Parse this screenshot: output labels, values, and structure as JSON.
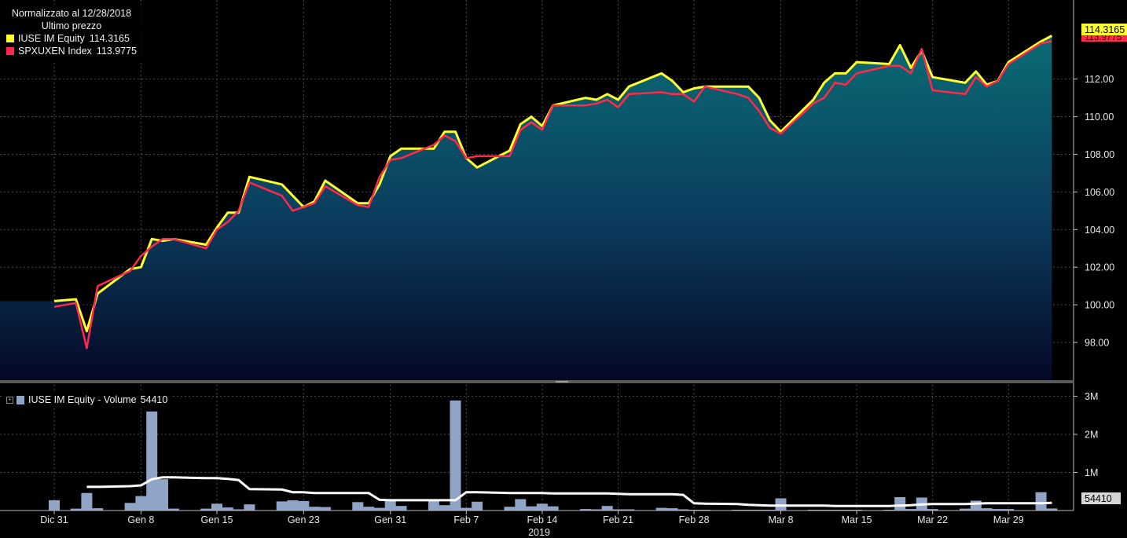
{
  "legend": {
    "header": "Normalizzato al 12/28/2018",
    "subheader": "Ultimo prezzo",
    "series": [
      {
        "label": "IUSE IM Equity",
        "value": "114.3165",
        "color": "#ffff33"
      },
      {
        "label": "SPXUXEN Index",
        "value": "113.9775",
        "color": "#ff2a4a"
      }
    ]
  },
  "volume_legend": {
    "label": "IUSE IM Equity - Volume",
    "value": "54410",
    "color": "#8fa4c7"
  },
  "last_labels": {
    "price": "114.3165",
    "price2": "113.9775",
    "volume": "54410"
  },
  "chart_data": {
    "type": "line",
    "x": [
      "2018-12-31",
      "2019-01-02",
      "2019-01-03",
      "2019-01-04",
      "2019-01-07",
      "2019-01-08",
      "2019-01-09",
      "2019-01-10",
      "2019-01-11",
      "2019-01-14",
      "2019-01-15",
      "2019-01-16",
      "2019-01-17",
      "2019-01-18",
      "2019-01-21",
      "2019-01-22",
      "2019-01-23",
      "2019-01-24",
      "2019-01-25",
      "2019-01-28",
      "2019-01-29",
      "2019-01-30",
      "2019-01-31",
      "2019-02-01",
      "2019-02-04",
      "2019-02-05",
      "2019-02-06",
      "2019-02-07",
      "2019-02-08",
      "2019-02-11",
      "2019-02-12",
      "2019-02-13",
      "2019-02-14",
      "2019-02-15",
      "2019-02-18",
      "2019-02-19",
      "2019-02-20",
      "2019-02-21",
      "2019-02-22",
      "2019-02-25",
      "2019-02-26",
      "2019-02-27",
      "2019-02-28",
      "2019-03-01",
      "2019-03-04",
      "2019-03-05",
      "2019-03-06",
      "2019-03-07",
      "2019-03-08",
      "2019-03-11",
      "2019-03-12",
      "2019-03-13",
      "2019-03-14",
      "2019-03-15",
      "2019-03-18",
      "2019-03-19",
      "2019-03-20",
      "2019-03-21",
      "2019-03-22",
      "2019-03-25",
      "2019-03-26",
      "2019-03-27",
      "2019-03-28",
      "2019-03-29",
      "2019-04-01",
      "2019-04-02"
    ],
    "series": [
      {
        "name": "IUSE IM Equity",
        "color": "#ffff33",
        "values": [
          100.2,
          100.3,
          98.6,
          100.6,
          101.9,
          102.0,
          103.5,
          103.4,
          103.5,
          103.2,
          104.1,
          104.9,
          104.9,
          106.8,
          106.4,
          105.8,
          105.2,
          105.5,
          106.6,
          105.4,
          105.4,
          106.4,
          107.9,
          108.3,
          108.3,
          109.2,
          109.2,
          107.8,
          107.3,
          108.2,
          109.6,
          110.0,
          109.5,
          110.6,
          111.0,
          110.9,
          111.2,
          110.9,
          111.6,
          112.3,
          111.9,
          111.3,
          111.5,
          111.6,
          111.6,
          111.6,
          111.0,
          109.8,
          109.2,
          110.9,
          111.8,
          112.3,
          112.3,
          112.9,
          112.8,
          113.8,
          112.6,
          113.5,
          112.1,
          111.8,
          112.4,
          111.7,
          111.9,
          112.9,
          114.0,
          114.3
        ]
      },
      {
        "name": "SPXUXEN Index",
        "color": "#ff2a4a",
        "values": [
          99.9,
          100.1,
          97.7,
          101.0,
          101.8,
          102.6,
          103.1,
          103.5,
          103.5,
          103.0,
          104.0,
          104.4,
          105.0,
          106.5,
          105.8,
          105.0,
          105.2,
          105.4,
          106.3,
          105.3,
          105.2,
          106.8,
          107.7,
          107.8,
          108.5,
          109.0,
          108.7,
          107.8,
          107.9,
          107.9,
          109.3,
          109.7,
          109.3,
          110.6,
          110.6,
          110.7,
          110.9,
          110.5,
          111.2,
          111.3,
          111.2,
          111.2,
          110.8,
          111.6,
          111.2,
          111.0,
          110.3,
          109.4,
          109.1,
          110.7,
          111.0,
          111.8,
          111.7,
          112.3,
          112.7,
          112.7,
          112.3,
          113.6,
          111.4,
          111.2,
          112.1,
          111.6,
          111.9,
          112.8,
          113.9,
          114.0
        ]
      },
      {
        "name": "IUSE IM Equity - Volume",
        "color": "#8fa4c7",
        "values": [
          270000,
          50000,
          460000,
          60000,
          200000,
          380000,
          2600000,
          820000,
          50000,
          50000,
          180000,
          80000,
          30000,
          160000,
          240000,
          270000,
          250000,
          100000,
          90000,
          220000,
          100000,
          70000,
          300000,
          120000,
          250000,
          140000,
          2890000,
          70000,
          230000,
          100000,
          300000,
          110000,
          180000,
          110000,
          40000,
          30000,
          120000,
          30000,
          30000,
          70000,
          60000,
          30000,
          20000,
          20000,
          20000,
          20000,
          20000,
          20000,
          320000,
          20000,
          20000,
          20000,
          20000,
          20000,
          20000,
          350000,
          40000,
          340000,
          40000,
          50000,
          260000,
          60000,
          40000,
          40000,
          480000,
          54410
        ]
      },
      {
        "name": "Volume average",
        "color": "#ffffff",
        "values": [
          null,
          null,
          620000,
          620000,
          640000,
          660000,
          820000,
          870000,
          870000,
          850000,
          850000,
          830000,
          800000,
          560000,
          550000,
          480000,
          480000,
          460000,
          460000,
          460000,
          460000,
          280000,
          270000,
          270000,
          270000,
          270000,
          270000,
          480000,
          480000,
          460000,
          460000,
          460000,
          460000,
          450000,
          450000,
          450000,
          450000,
          440000,
          430000,
          430000,
          430000,
          410000,
          190000,
          180000,
          170000,
          150000,
          140000,
          130000,
          130000,
          130000,
          130000,
          120000,
          120000,
          120000,
          120000,
          130000,
          140000,
          160000,
          170000,
          170000,
          180000,
          190000,
          190000,
          190000,
          190000,
          200000
        ]
      }
    ],
    "price_axis": {
      "ticks": [
        "98.00",
        "100.00",
        "102.00",
        "104.00",
        "106.00",
        "108.00",
        "110.00",
        "112.00"
      ],
      "ylim": [
        96.0,
        116.2
      ]
    },
    "volume_axis": {
      "ticks": [
        "1M",
        "2M",
        "3M"
      ],
      "ylim": [
        0,
        3300000
      ]
    },
    "date_ticks": [
      {
        "date": "2018-12-31",
        "label": "Dic 31"
      },
      {
        "date": "2019-01-08",
        "label": "Gen 8"
      },
      {
        "date": "2019-01-15",
        "label": "Gen 15"
      },
      {
        "date": "2019-01-23",
        "label": "Gen 23"
      },
      {
        "date": "2019-01-31",
        "label": "Gen 31"
      },
      {
        "date": "2019-02-07",
        "label": "Feb 7"
      },
      {
        "date": "2019-02-14",
        "label": "Feb 14"
      },
      {
        "date": "2019-02-21",
        "label": "Feb 21"
      },
      {
        "date": "2019-02-28",
        "label": "Feb 28"
      },
      {
        "date": "2019-03-08",
        "label": "Mar 8"
      },
      {
        "date": "2019-03-15",
        "label": "Mar 15"
      },
      {
        "date": "2019-03-22",
        "label": "Mar 22"
      },
      {
        "date": "2019-03-29",
        "label": "Mar 29"
      }
    ],
    "year_label": "2019",
    "grid": true,
    "legend_position": "top-left"
  }
}
